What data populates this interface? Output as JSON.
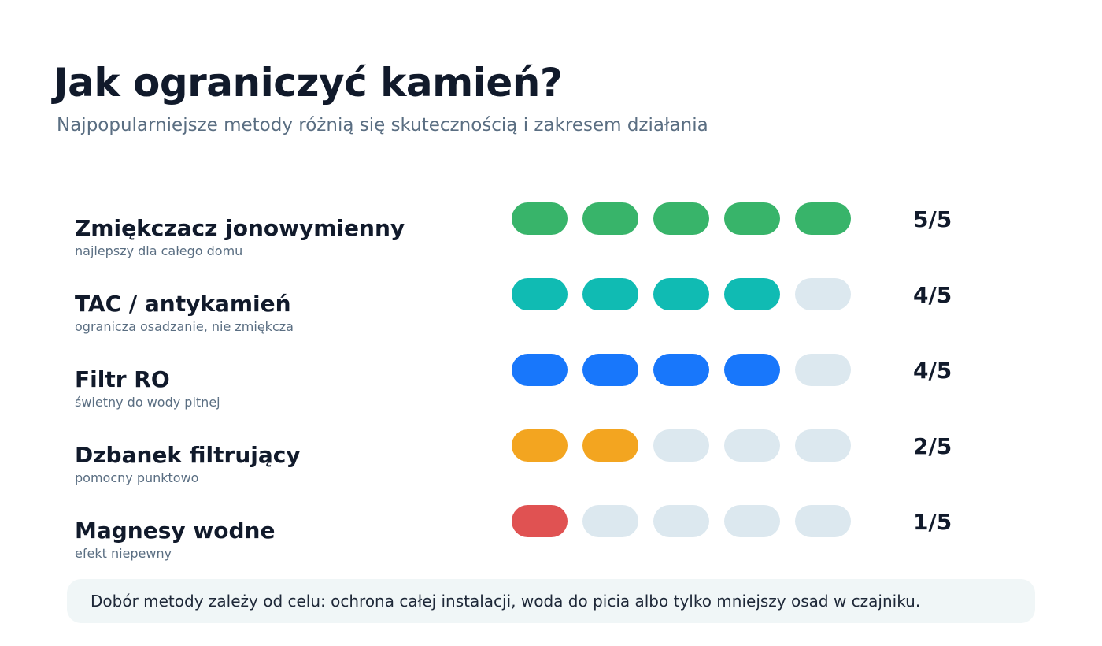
{
  "header": {
    "title": "Jak ograniczyć kamień?",
    "subtitle": "Najpopularniejsze metody różnią się skutecznością i zakresem działania"
  },
  "chart_data": {
    "type": "rating",
    "max": 5,
    "empty_color": "#dce8ef",
    "items": [
      {
        "name": "Zmiękczacz jonowymienny",
        "description": "najlepszy dla całego domu",
        "value": 5,
        "score_label": "5/5",
        "color": "#38b46a"
      },
      {
        "name": "TAC / antykamień",
        "description": "ogranicza osadzanie, nie zmiękcza",
        "value": 4,
        "score_label": "4/5",
        "color": "#10bbb3"
      },
      {
        "name": "Filtr RO",
        "description": "świetny do wody pitnej",
        "value": 4,
        "score_label": "4/5",
        "color": "#1877fb"
      },
      {
        "name": "Dzbanek filtrujący",
        "description": "pomocny punktowo",
        "value": 2,
        "score_label": "2/5",
        "color": "#f3a520"
      },
      {
        "name": "Magnesy wodne",
        "description": "efekt niepewny",
        "value": 1,
        "score_label": "1/5",
        "color": "#e05252"
      }
    ]
  },
  "footer": {
    "note": "Dobór metody zależy od celu: ochrona całej instalacji, woda do picia albo tylko mniejszy osad w czajniku."
  }
}
